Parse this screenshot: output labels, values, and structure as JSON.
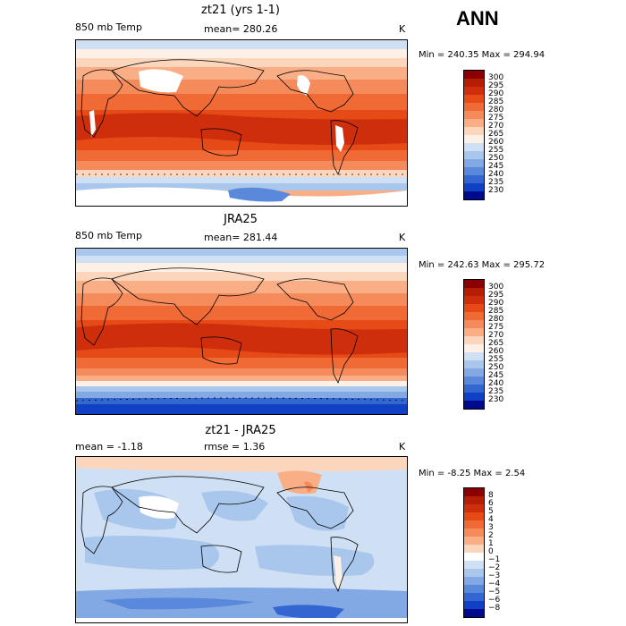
{
  "season": "ANN",
  "panels": [
    {
      "title": "zt21 (yrs 1-1)",
      "left_label": "850 mb Temp",
      "center_label": "mean= 280.26",
      "units": "K",
      "minmax": "Min = 240.35 Max = 294.94",
      "colorbar": {
        "labels": [
          "300",
          "295",
          "290",
          "285",
          "280",
          "275",
          "270",
          "265",
          "260",
          "255",
          "250",
          "245",
          "240",
          "235",
          "230"
        ],
        "colors": [
          "#8b0000",
          "#b41e05",
          "#cf2e0c",
          "#e64a17",
          "#f06a35",
          "#f58b5a",
          "#f9ae86",
          "#fcd6bc",
          "#fdf0e6",
          "#cfe0f4",
          "#a9c6ec",
          "#82a9e4",
          "#5a88da",
          "#3366d0",
          "#1040c4",
          "#000a8c"
        ]
      }
    },
    {
      "title": "JRA25",
      "left_label": "850 mb Temp",
      "center_label": "mean= 281.44",
      "units": "K",
      "minmax": "Min = 242.63 Max = 295.72",
      "colorbar": {
        "labels": [
          "300",
          "295",
          "290",
          "285",
          "280",
          "275",
          "270",
          "265",
          "260",
          "255",
          "250",
          "245",
          "240",
          "235",
          "230"
        ],
        "colors": [
          "#8b0000",
          "#b41e05",
          "#cf2e0c",
          "#e64a17",
          "#f06a35",
          "#f58b5a",
          "#f9ae86",
          "#fcd6bc",
          "#fdf0e6",
          "#cfe0f4",
          "#a9c6ec",
          "#82a9e4",
          "#5a88da",
          "#3366d0",
          "#1040c4",
          "#000a8c"
        ]
      }
    },
    {
      "title": "zt21 - JRA25",
      "left_label": "mean =  -1.18",
      "center_label": "rmse =   1.36",
      "units": "K",
      "minmax": "Min =  -8.25 Max =   2.54",
      "colorbar": {
        "labels": [
          "8",
          "6",
          "5",
          "4",
          "3",
          "2",
          "1",
          "0",
          "−1",
          "−2",
          "−3",
          "−4",
          "−5",
          "−6",
          "−8"
        ],
        "colors": [
          "#8b0000",
          "#b41e05",
          "#cf2e0c",
          "#e64a17",
          "#f06a35",
          "#f58b5a",
          "#f9ae86",
          "#fcd6bc",
          "#ffffff",
          "#cfe0f4",
          "#a9c6ec",
          "#82a9e4",
          "#5a88da",
          "#3366d0",
          "#1040c4",
          "#000a8c"
        ]
      }
    }
  ]
}
